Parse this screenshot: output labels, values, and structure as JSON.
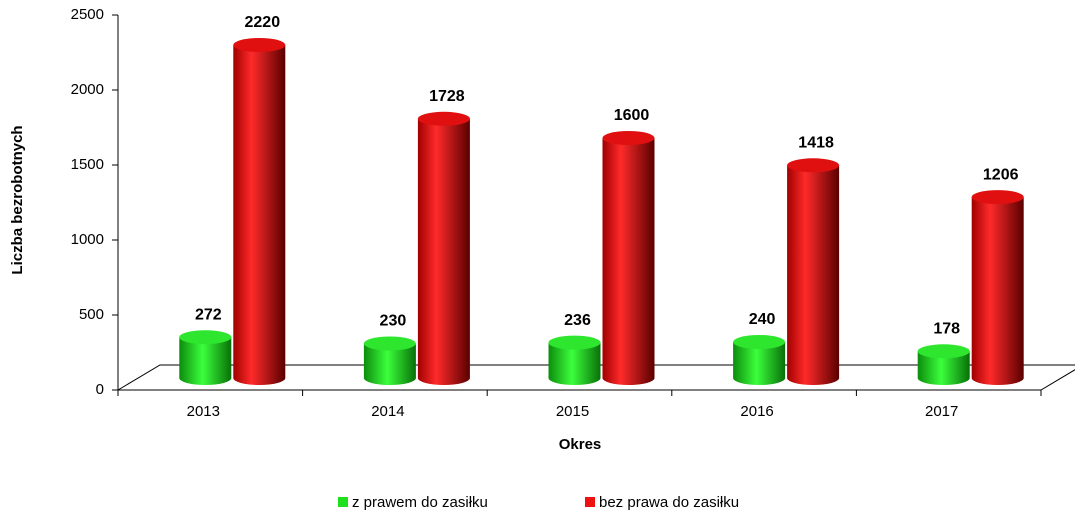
{
  "chart_data": {
    "type": "bar",
    "x_label": "Okres",
    "y_label": "Liczba bezrobotnych",
    "categories": [
      "2013",
      "2014",
      "2015",
      "2016",
      "2017"
    ],
    "series": [
      {
        "name": "z prawem do zasiłku",
        "color": "#1fe01f",
        "values": [
          272,
          230,
          236,
          240,
          178
        ]
      },
      {
        "name": "bez prawa do zasiłku",
        "color": "#ee1111",
        "values": [
          2220,
          1728,
          1600,
          1418,
          1206
        ]
      }
    ],
    "ylim": [
      0,
      2500
    ],
    "yticks": [
      0,
      500,
      1000,
      1500,
      2000,
      2500
    ],
    "legend": "bottom"
  }
}
